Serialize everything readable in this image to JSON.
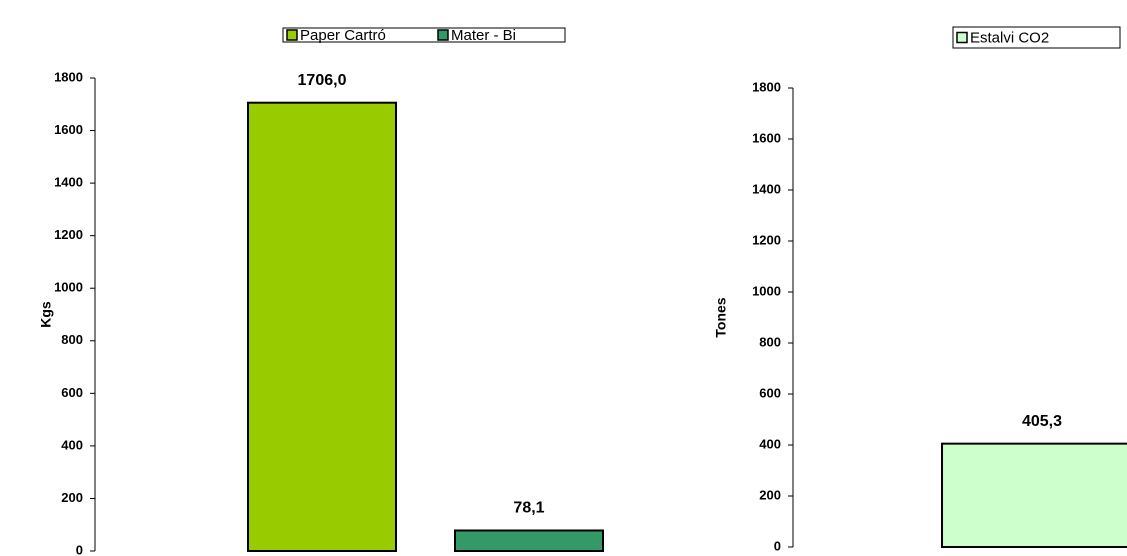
{
  "chart_data": [
    {
      "type": "bar",
      "y_label": "Kgs",
      "categories": [
        null
      ],
      "series": [
        {
          "name": "Paper Cartró",
          "color": "#99cc00",
          "values": [
            1706.0
          ],
          "value_labels": [
            "1706,0"
          ]
        },
        {
          "name": "Mater - Bi",
          "color": "#339966",
          "values": [
            78.1
          ],
          "value_labels": [
            "78,1"
          ]
        }
      ],
      "ylim": [
        0,
        1800
      ],
      "yticks": [
        0,
        200,
        400,
        600,
        800,
        1000,
        1200,
        1400,
        1600,
        1800
      ],
      "legend": "top"
    },
    {
      "type": "bar",
      "y_label": "Tones",
      "categories": [
        null
      ],
      "series": [
        {
          "name": "Estalvi CO2",
          "color": "#ccffcc",
          "values": [
            405.3
          ],
          "value_labels": [
            "405,3"
          ]
        }
      ],
      "ylim": [
        0,
        1800
      ],
      "yticks": [
        0,
        200,
        400,
        600,
        800,
        1000,
        1200,
        1400,
        1600,
        1800
      ],
      "legend": "top-right"
    }
  ]
}
